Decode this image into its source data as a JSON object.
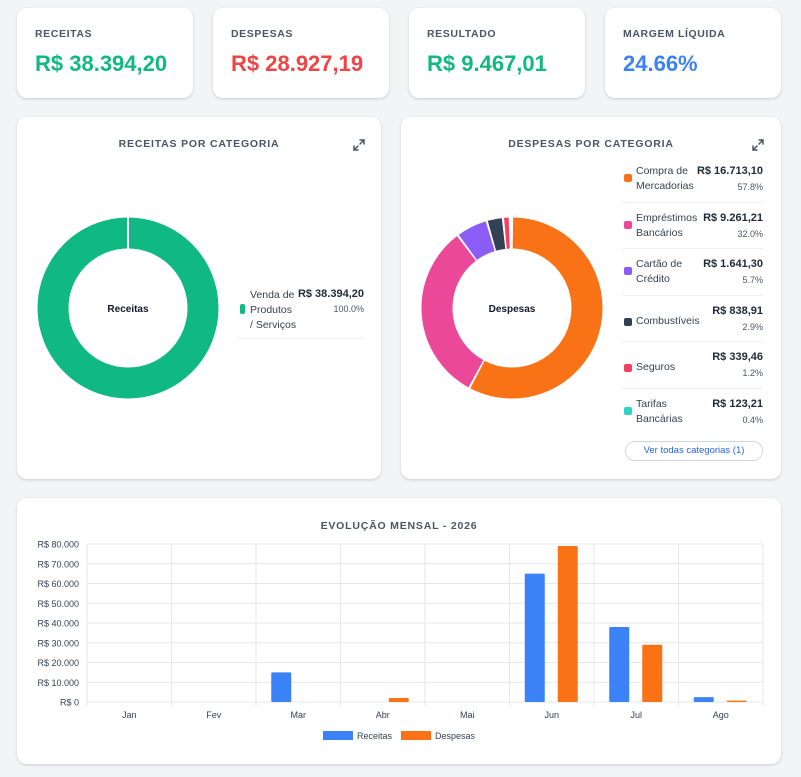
{
  "kpis": [
    {
      "label": "RECEITAS",
      "value": "R$ 38.394,20",
      "color": "#10b981"
    },
    {
      "label": "DESPESAS",
      "value": "R$ 28.927,19",
      "color": "#ef4444"
    },
    {
      "label": "RESULTADO",
      "value": "R$ 9.467,01",
      "color": "#10b981"
    },
    {
      "label": "MARGEM LÍQUIDA",
      "value": "24.66%",
      "color": "#3b82f6"
    }
  ],
  "receitas_panel": {
    "title": "RECEITAS POR CATEGORIA",
    "center_label": "Receitas",
    "items": [
      {
        "label_lines": [
          "Venda de",
          "Produtos",
          "/ Serviços"
        ],
        "value": "R$ 38.394,20",
        "pct": "100.0%",
        "color": "#10b981",
        "share": 100.0
      }
    ]
  },
  "despesas_panel": {
    "title": "DESPESAS POR CATEGORIA",
    "center_label": "Despesas",
    "see_all_label": "Ver todas categorias (1)",
    "items": [
      {
        "label_lines": [
          "Compra de",
          "Mercadorias"
        ],
        "value": "R$ 16.713,10",
        "pct": "57.8%",
        "color": "#f97316",
        "share": 57.8
      },
      {
        "label_lines": [
          "Empréstimos",
          "Bancários"
        ],
        "value": "R$ 9.261,21",
        "pct": "32.0%",
        "color": "#ec4899",
        "share": 32.0
      },
      {
        "label_lines": [
          "Cartão de",
          "Crédito"
        ],
        "value": "R$ 1.641,30",
        "pct": "5.7%",
        "color": "#8b5cf6",
        "share": 5.7
      },
      {
        "label_lines": [
          "Combustíveis"
        ],
        "value": "R$ 838,91",
        "pct": "2.9%",
        "color": "#334155",
        "share": 2.9
      },
      {
        "label_lines": [
          "Seguros"
        ],
        "value": "R$ 339,46",
        "pct": "1.2%",
        "color": "#f43f5e",
        "share": 1.2
      },
      {
        "label_lines": [
          "Tarifas",
          "Bancárias"
        ],
        "value": "R$ 123,21",
        "pct": "0.4%",
        "color": "#2dd4bf",
        "share": 0.4
      }
    ]
  },
  "chart_data": {
    "type": "bar",
    "title": "EVOLUÇÃO MENSAL - 2026",
    "categories": [
      "Jan",
      "Fev",
      "Mar",
      "Abr",
      "Mai",
      "Jun",
      "Jul",
      "Ago"
    ],
    "series": [
      {
        "name": "Receitas",
        "color": "#3b82f6",
        "values": [
          0,
          0,
          15000,
          0,
          0,
          65000,
          38000,
          2500
        ]
      },
      {
        "name": "Despesas",
        "color": "#f97316",
        "values": [
          0,
          0,
          0,
          2000,
          0,
          79000,
          29000,
          700
        ]
      }
    ],
    "ylim": [
      0,
      80000
    ],
    "yticks": [
      "R$ 0",
      "R$ 10.000",
      "R$ 20.000",
      "R$ 30.000",
      "R$ 40.000",
      "R$ 50.000",
      "R$ 60.000",
      "R$ 70.000",
      "R$ 80.000"
    ],
    "grid": true,
    "legend": "bottom"
  }
}
